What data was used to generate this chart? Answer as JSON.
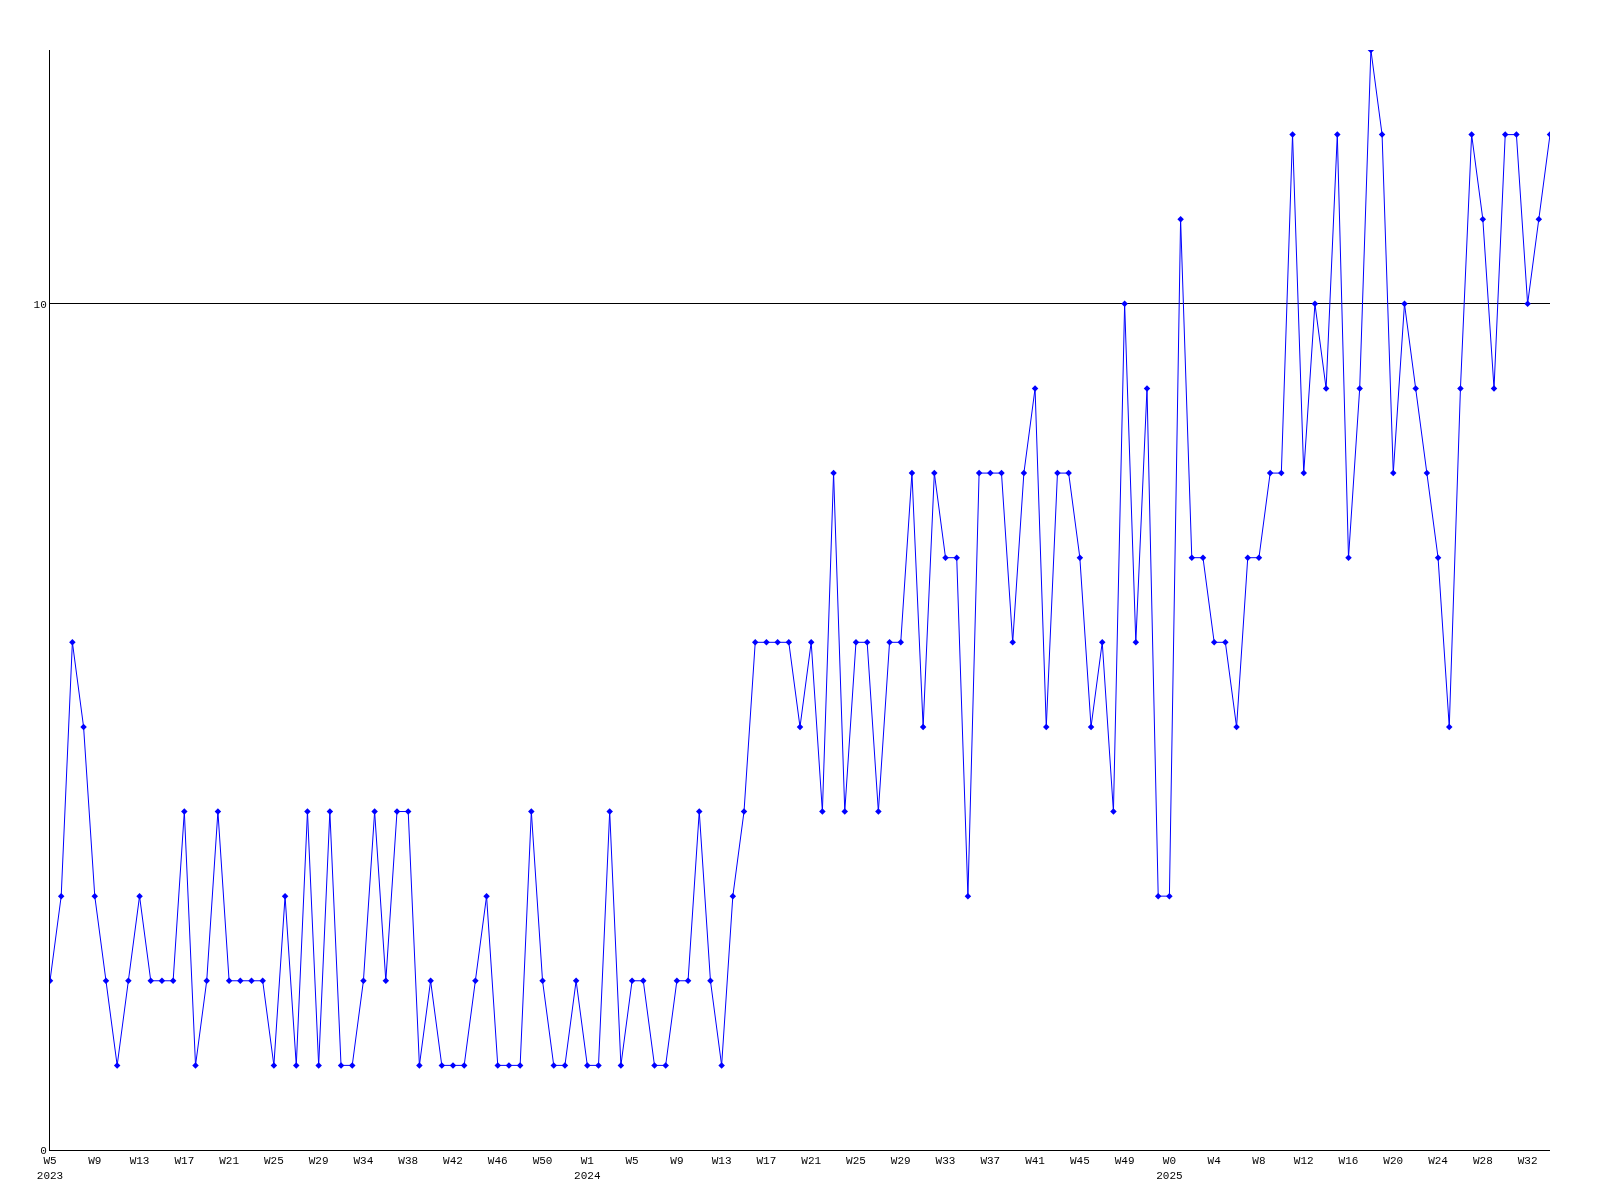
{
  "chart_data": {
    "type": "line",
    "categories": [
      "W5\n2023",
      null,
      null,
      null,
      "W9",
      null,
      null,
      null,
      "W13",
      null,
      null,
      null,
      "W17",
      null,
      null,
      null,
      "W21",
      null,
      null,
      null,
      "W25",
      null,
      null,
      null,
      "W29",
      null,
      null,
      null,
      "W34",
      null,
      null,
      null,
      "W38",
      null,
      null,
      null,
      "W42",
      null,
      null,
      null,
      "W46",
      null,
      null,
      null,
      "W50",
      null,
      null,
      null,
      "W1\n2024",
      null,
      null,
      null,
      "W5",
      null,
      null,
      null,
      "W9",
      null,
      null,
      null,
      "W13",
      null,
      null,
      null,
      "W17",
      null,
      null,
      null,
      "W21",
      null,
      null,
      null,
      "W25",
      null,
      null,
      null,
      "W29",
      null,
      null,
      null,
      "W33",
      null,
      null,
      null,
      "W37",
      null,
      null,
      null,
      "W41",
      null,
      null,
      null,
      "W45",
      null,
      null,
      null,
      "W49",
      null,
      null,
      null,
      "W0\n2025",
      null,
      null,
      null,
      "W4",
      null,
      null,
      null,
      "W8",
      null,
      null,
      null,
      "W12",
      null,
      null,
      null,
      "W16",
      null,
      null,
      null,
      "W20",
      null,
      null,
      null,
      "W24",
      null,
      null,
      null,
      "W28",
      null,
      null,
      null,
      "W32",
      null,
      null
    ],
    "series": [
      {
        "color": "#0000ff",
        "values": [
          2,
          3,
          6,
          5,
          3,
          2,
          1,
          2,
          3,
          2,
          2,
          2,
          4,
          1,
          2,
          4,
          2,
          2,
          2,
          2,
          1,
          3,
          1,
          4,
          1,
          4,
          1,
          1,
          2,
          4,
          2,
          4,
          4,
          1,
          2,
          1,
          1,
          1,
          2,
          3,
          1,
          1,
          1,
          4,
          2,
          1,
          1,
          2,
          1,
          1,
          4,
          1,
          2,
          2,
          1,
          1,
          2,
          2,
          4,
          2,
          1,
          3,
          4,
          6,
          6,
          6,
          6,
          5,
          6,
          4,
          8,
          4,
          6,
          6,
          4,
          6,
          6,
          8,
          5,
          8,
          7,
          7,
          3,
          8,
          8,
          8,
          6,
          8,
          9,
          5,
          8,
          8,
          7,
          5,
          6,
          4,
          10,
          6,
          9,
          3,
          3,
          11,
          7,
          7,
          6,
          6,
          5,
          7,
          7,
          8,
          8,
          12,
          8,
          10,
          9,
          12,
          7,
          9,
          13,
          12,
          8,
          10,
          9,
          8,
          7,
          5,
          9,
          12,
          11,
          9,
          12,
          12,
          10,
          11,
          12
        ]
      }
    ],
    "ylim": [
      0,
      13
    ],
    "yticks": [
      0,
      10
    ],
    "grid": "y",
    "marker": "diamond",
    "line_style": "solid"
  }
}
